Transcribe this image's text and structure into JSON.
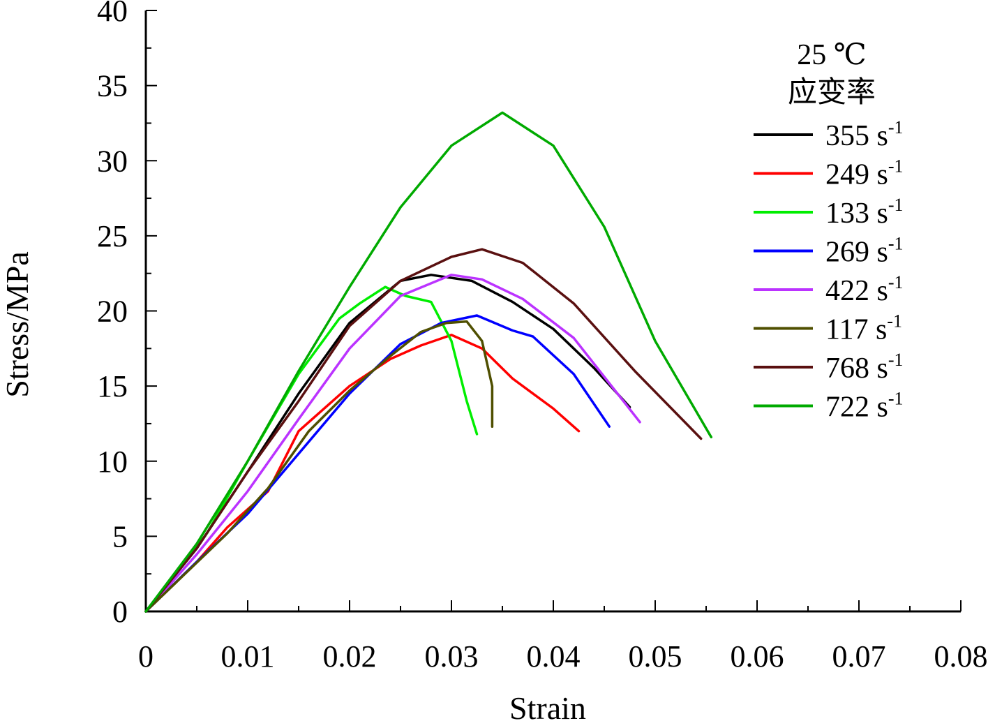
{
  "chart_data": {
    "type": "line",
    "xlabel": "Strain",
    "ylabel": "Stress/MPa",
    "xlim": [
      0,
      0.08
    ],
    "ylim": [
      0,
      40
    ],
    "x_ticks": [
      0,
      0.01,
      0.02,
      0.03,
      0.04,
      0.05,
      0.06,
      0.07,
      0.08
    ],
    "x_tick_labels": [
      "0",
      "0.01",
      "0.02",
      "0.03",
      "0.04",
      "0.05",
      "0.06",
      "0.07",
      "0.08"
    ],
    "y_ticks": [
      0,
      5,
      10,
      15,
      20,
      25,
      30,
      35,
      40
    ],
    "y_tick_labels": [
      "0",
      "5",
      "10",
      "15",
      "20",
      "25",
      "30",
      "35",
      "40"
    ],
    "legend": {
      "title_line1": "25 ℃",
      "title_line2": "应变率",
      "unit": "s",
      "unit_sup": "-1",
      "placement": "right"
    },
    "series": [
      {
        "name": "355",
        "color": "#000000",
        "x": [
          0,
          0.005,
          0.01,
          0.015,
          0.02,
          0.025,
          0.028,
          0.032,
          0.036,
          0.04,
          0.044,
          0.0475
        ],
        "y": [
          0,
          4.2,
          9.3,
          14.5,
          19.2,
          22.0,
          22.4,
          22.0,
          20.6,
          18.8,
          16.2,
          13.6
        ]
      },
      {
        "name": "249",
        "color": "#ff0000",
        "x": [
          0,
          0.005,
          0.008,
          0.012,
          0.015,
          0.02,
          0.024,
          0.027,
          0.03,
          0.033,
          0.036,
          0.04,
          0.0425
        ],
        "y": [
          0,
          3.3,
          5.6,
          8.0,
          12.0,
          15.0,
          16.8,
          17.7,
          18.4,
          17.5,
          15.5,
          13.5,
          12.0
        ]
      },
      {
        "name": "133",
        "color": "#00ee00",
        "x": [
          0,
          0.003,
          0.006,
          0.01,
          0.015,
          0.019,
          0.021,
          0.0235,
          0.0255,
          0.028,
          0.03,
          0.0315,
          0.0325
        ],
        "y": [
          0,
          2.6,
          5.2,
          10.0,
          15.8,
          19.5,
          20.5,
          21.6,
          21.0,
          20.6,
          18.0,
          14.0,
          11.8
        ]
      },
      {
        "name": "269",
        "color": "#0000ff",
        "x": [
          0,
          0.005,
          0.01,
          0.015,
          0.02,
          0.025,
          0.029,
          0.0325,
          0.036,
          0.038,
          0.042,
          0.0455
        ],
        "y": [
          0,
          3.3,
          6.5,
          10.5,
          14.5,
          17.8,
          19.2,
          19.7,
          18.7,
          18.3,
          15.8,
          12.3
        ]
      },
      {
        "name": "422",
        "color": "#bb33ff",
        "x": [
          0,
          0.005,
          0.01,
          0.015,
          0.02,
          0.025,
          0.03,
          0.033,
          0.037,
          0.042,
          0.0485
        ],
        "y": [
          0,
          3.8,
          8.0,
          12.8,
          17.5,
          21.0,
          22.4,
          22.1,
          20.8,
          18.2,
          12.6
        ]
      },
      {
        "name": "117",
        "color": "#4f4f00",
        "x": [
          0,
          0.004,
          0.008,
          0.012,
          0.016,
          0.02,
          0.024,
          0.027,
          0.0295,
          0.0315,
          0.033,
          0.034,
          0.034
        ],
        "y": [
          0,
          2.6,
          5.2,
          8.2,
          12.0,
          14.7,
          17.0,
          18.6,
          19.2,
          19.3,
          18.0,
          15.0,
          12.3
        ]
      },
      {
        "name": "768",
        "color": "#5a1010",
        "x": [
          0,
          0.005,
          0.01,
          0.015,
          0.02,
          0.025,
          0.03,
          0.033,
          0.037,
          0.042,
          0.048,
          0.0545
        ],
        "y": [
          0,
          4.2,
          9.3,
          14.0,
          19.0,
          22.0,
          23.6,
          24.1,
          23.2,
          20.5,
          16.0,
          11.5
        ]
      },
      {
        "name": "722",
        "color": "#00aa00",
        "x": [
          0,
          0.005,
          0.01,
          0.015,
          0.02,
          0.025,
          0.03,
          0.035,
          0.04,
          0.045,
          0.05,
          0.0555
        ],
        "y": [
          0,
          4.5,
          10.0,
          16.0,
          21.6,
          26.9,
          31.0,
          33.2,
          31.0,
          25.6,
          18.0,
          11.6
        ]
      }
    ]
  }
}
